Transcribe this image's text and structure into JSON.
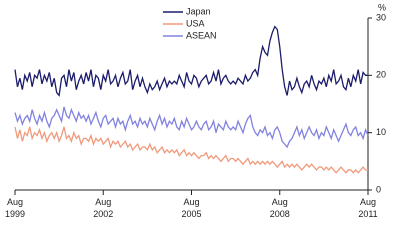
{
  "chart_data": {
    "type": "line",
    "y_unit": "%",
    "x": [
      "1999-08",
      "1999-09",
      "1999-10",
      "1999-11",
      "1999-12",
      "2000-01",
      "2000-02",
      "2000-03",
      "2000-04",
      "2000-05",
      "2000-06",
      "2000-07",
      "2000-08",
      "2000-09",
      "2000-10",
      "2000-11",
      "2000-12",
      "2001-01",
      "2001-02",
      "2001-03",
      "2001-04",
      "2001-05",
      "2001-06",
      "2001-07",
      "2001-08",
      "2001-09",
      "2001-10",
      "2001-11",
      "2001-12",
      "2002-01",
      "2002-02",
      "2002-03",
      "2002-04",
      "2002-05",
      "2002-06",
      "2002-07",
      "2002-08",
      "2002-09",
      "2002-10",
      "2002-11",
      "2002-12",
      "2003-01",
      "2003-02",
      "2003-03",
      "2003-04",
      "2003-05",
      "2003-06",
      "2003-07",
      "2003-08",
      "2003-09",
      "2003-10",
      "2003-11",
      "2003-12",
      "2004-01",
      "2004-02",
      "2004-03",
      "2004-04",
      "2004-05",
      "2004-06",
      "2004-07",
      "2004-08",
      "2004-09",
      "2004-10",
      "2004-11",
      "2004-12",
      "2005-01",
      "2005-02",
      "2005-03",
      "2005-04",
      "2005-05",
      "2005-06",
      "2005-07",
      "2005-08",
      "2005-09",
      "2005-10",
      "2005-11",
      "2005-12",
      "2006-01",
      "2006-02",
      "2006-03",
      "2006-04",
      "2006-05",
      "2006-06",
      "2006-07",
      "2006-08",
      "2006-09",
      "2006-10",
      "2006-11",
      "2006-12",
      "2007-01",
      "2007-02",
      "2007-03",
      "2007-04",
      "2007-05",
      "2007-06",
      "2007-07",
      "2007-08",
      "2007-09",
      "2007-10",
      "2007-11",
      "2007-12",
      "2008-01",
      "2008-02",
      "2008-03",
      "2008-04",
      "2008-05",
      "2008-06",
      "2008-07",
      "2008-08",
      "2008-09",
      "2008-10",
      "2008-11",
      "2008-12",
      "2009-01",
      "2009-02",
      "2009-03",
      "2009-04",
      "2009-05",
      "2009-06",
      "2009-07",
      "2009-08",
      "2009-09",
      "2009-10",
      "2009-11",
      "2009-12",
      "2010-01",
      "2010-02",
      "2010-03",
      "2010-04",
      "2010-05",
      "2010-06",
      "2010-07",
      "2010-08",
      "2010-09",
      "2010-10",
      "2010-11",
      "2010-12",
      "2011-01",
      "2011-02",
      "2011-03",
      "2011-04",
      "2011-05",
      "2011-06",
      "2011-07",
      "2011-08"
    ],
    "series": [
      {
        "name": "Japan",
        "color": "#1c1c6b",
        "values": [
          21,
          18,
          19.5,
          17.5,
          20,
          19,
          20.5,
          18,
          20,
          19.5,
          21,
          18.5,
          20,
          19,
          20.5,
          18,
          19.5,
          17,
          16.5,
          19.5,
          20,
          18,
          21,
          19,
          20.5,
          17.5,
          19,
          20,
          18.5,
          20.5,
          19,
          21,
          18,
          20,
          19.5,
          17.5,
          20,
          19,
          21,
          18.5,
          19,
          20,
          18,
          19.5,
          20.5,
          18.5,
          19,
          21,
          17.5,
          19,
          20,
          18,
          19.5,
          18,
          17,
          18.5,
          17.5,
          18,
          19,
          17.5,
          18.5,
          19.5,
          18,
          19,
          18.5,
          19,
          18.5,
          20,
          19,
          18,
          20.5,
          19,
          18.5,
          20,
          19.5,
          18,
          19,
          19.5,
          20,
          18.5,
          19,
          20.5,
          19,
          21,
          18.5,
          19.5,
          20,
          19,
          18.5,
          19,
          18.5,
          19.5,
          19,
          18.5,
          20,
          19,
          19.5,
          20.5,
          21,
          20,
          23,
          25,
          24,
          23.5,
          26,
          27.5,
          28.5,
          28,
          25,
          21,
          18,
          16.5,
          19,
          17.5,
          18,
          19.5,
          18,
          17,
          18.5,
          19,
          18,
          20,
          18.5,
          17.5,
          19,
          18.5,
          19.5,
          18,
          20,
          19,
          21,
          18.5,
          19,
          20,
          18,
          17.5,
          19.5,
          18,
          20,
          19,
          21,
          18.5,
          20.5,
          20,
          20
        ]
      },
      {
        "name": "USA",
        "color": "#f09a7c",
        "values": [
          11,
          9,
          10.5,
          8.5,
          10,
          9.5,
          11,
          9,
          10,
          9.5,
          10.5,
          9,
          10,
          8.5,
          9.5,
          10,
          9,
          10,
          8.5,
          9.5,
          11,
          9,
          9.5,
          8.5,
          10,
          9,
          9.5,
          8,
          9,
          9,
          8.5,
          9.5,
          8,
          9,
          8.5,
          9,
          8,
          8.5,
          9,
          7.5,
          8.5,
          8,
          8.5,
          7.5,
          8,
          8.5,
          7.5,
          8,
          7,
          7.5,
          8,
          7,
          7.5,
          7.5,
          7,
          8,
          7,
          7.5,
          6.5,
          7,
          7.5,
          6.5,
          7,
          6.5,
          7,
          6.5,
          7,
          6,
          6.5,
          7,
          6,
          6.5,
          6,
          6.5,
          6,
          5.5,
          6,
          6,
          6.5,
          5.5,
          6,
          5.5,
          6,
          5.5,
          5,
          5.5,
          6,
          5,
          5.5,
          5.5,
          5,
          5.5,
          5,
          4.5,
          5,
          5.5,
          4.5,
          5,
          4.5,
          5,
          4.5,
          5,
          4.5,
          5,
          4.5,
          5,
          4.5,
          4,
          4.5,
          5,
          4,
          4.5,
          4,
          4.5,
          4,
          4.5,
          4,
          3.5,
          4,
          4.5,
          4,
          4.5,
          4,
          3.5,
          4,
          4,
          3.5,
          4,
          3.5,
          4,
          3.5,
          3,
          3.5,
          4,
          3.5,
          3,
          3.5,
          3.5,
          3,
          3.5,
          3,
          3.5,
          4,
          3.5,
          3.5
        ]
      },
      {
        "name": "ASEAN",
        "color": "#8282e0",
        "values": [
          13.5,
          12,
          13,
          11.5,
          12.5,
          13,
          12,
          14,
          12.5,
          11.5,
          13,
          12,
          13.5,
          12,
          11,
          12.5,
          13,
          14,
          13,
          12,
          14.5,
          13,
          12.5,
          14,
          13,
          12,
          13.5,
          12.5,
          13,
          12,
          13,
          11.5,
          12.5,
          13.5,
          12,
          11,
          12.5,
          13,
          11.5,
          12,
          12.5,
          11,
          12.5,
          11.5,
          12,
          10.5,
          12,
          13,
          11.5,
          12,
          11,
          12.5,
          11.5,
          12,
          11,
          12.5,
          11.5,
          10.5,
          12,
          13,
          11.5,
          12.5,
          11,
          12,
          11.5,
          12.5,
          11,
          10.5,
          12,
          11,
          12.5,
          11.5,
          10.5,
          11,
          12,
          11,
          10.5,
          11.5,
          12,
          10.5,
          11,
          12,
          10,
          11.5,
          11,
          10.5,
          12,
          11,
          10.5,
          11,
          10.5,
          12,
          11,
          10,
          11.5,
          12.5,
          13,
          11,
          10,
          9.5,
          10.5,
          10,
          11,
          9.5,
          10,
          9,
          10.5,
          11,
          10,
          8.5,
          8,
          7.5,
          8.5,
          9,
          10,
          11,
          9.5,
          10.5,
          9,
          10,
          11,
          10,
          9.5,
          10.5,
          9,
          10,
          9.5,
          11,
          10,
          9,
          10.5,
          9.5,
          8.5,
          9.5,
          10.5,
          11.5,
          10,
          9.5,
          10.5,
          11,
          9.5,
          10,
          9,
          10.5,
          9.5
        ]
      }
    ],
    "xlim": [
      "1999-08",
      "2011-08"
    ],
    "xticks": [
      {
        "value": "1999-08",
        "label": "Aug 1999"
      },
      {
        "value": "2002-08",
        "label": "Aug 2002"
      },
      {
        "value": "2005-08",
        "label": "Aug 2005"
      },
      {
        "value": "2008-08",
        "label": "Aug 2008"
      },
      {
        "value": "2011-08",
        "label": "Aug 2011"
      }
    ],
    "ylim": [
      0,
      30
    ],
    "yticks": [
      0,
      10,
      20,
      30
    ],
    "legend": "top"
  }
}
